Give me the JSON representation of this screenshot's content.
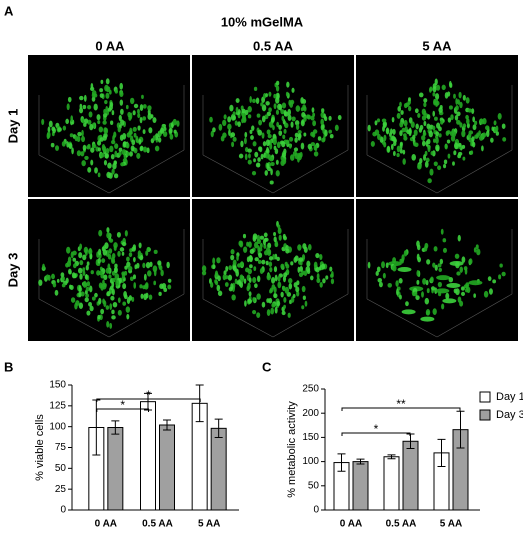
{
  "panel_a": {
    "label": "A",
    "title": "10% mGelMA",
    "columns": [
      "0 AA",
      "0.5 AA",
      "5 AA"
    ],
    "rows": [
      "Day 1",
      "Day 3"
    ]
  },
  "chart_data": [
    {
      "type": "bar",
      "panel": "B",
      "y_label": "% viable cells",
      "categories": [
        "0 AA",
        "0.5 AA",
        "5 AA"
      ],
      "series": [
        {
          "color": "#ffffff",
          "values": [
            99,
            130,
            128
          ],
          "errors": [
            33,
            10,
            22
          ]
        },
        {
          "color": "#a0a0a0",
          "values": [
            99,
            102,
            98
          ],
          "errors": [
            8,
            6,
            11
          ]
        }
      ],
      "ylim": [
        0,
        150
      ],
      "yticks": [
        0,
        25,
        50,
        75,
        100,
        125,
        150
      ],
      "annotations": [
        "*",
        "*"
      ]
    },
    {
      "type": "bar",
      "panel": "C",
      "y_label": "% metabolic activity",
      "categories": [
        "0 AA",
        "0.5 AA",
        "5 AA"
      ],
      "series": [
        {
          "name": "Day 1",
          "color": "#ffffff",
          "values": [
            98,
            110,
            118
          ],
          "errors": [
            18,
            4,
            28
          ]
        },
        {
          "name": "Day 3",
          "color": "#a0a0a0",
          "values": [
            100,
            142,
            166
          ],
          "errors": [
            5,
            15,
            38
          ]
        }
      ],
      "ylim": [
        0,
        250
      ],
      "yticks": [
        0,
        50,
        100,
        150,
        200,
        250
      ],
      "legend": "top right",
      "annotations": [
        "*",
        "**"
      ]
    }
  ]
}
